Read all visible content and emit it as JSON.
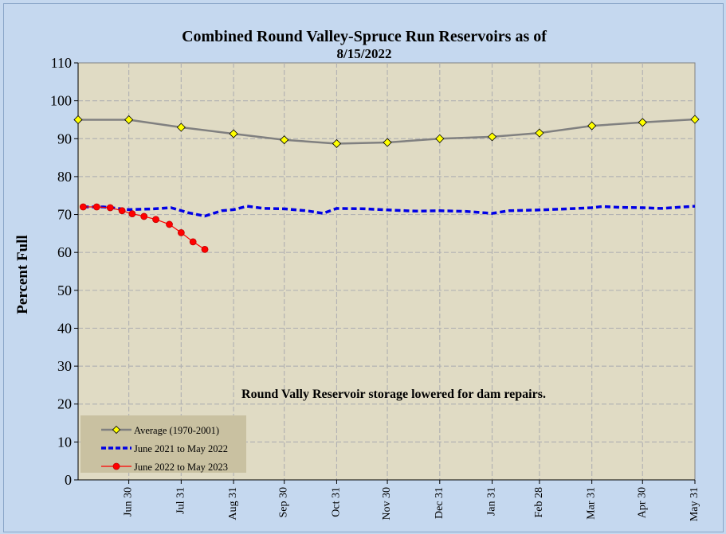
{
  "chart_data": {
    "type": "line",
    "title": "Combined Round Valley-Spruce Run Reservoirs as of",
    "subtitle": "8/15/2022",
    "ylabel": "Percent Full",
    "xlabel": "",
    "ylim": [
      0,
      110
    ],
    "yticks": [
      0,
      10,
      20,
      30,
      40,
      50,
      60,
      70,
      80,
      90,
      100,
      110
    ],
    "xlim": [
      0,
      365
    ],
    "x_ticks": [
      {
        "label": "Jun 30",
        "day": 30
      },
      {
        "label": "Jul 31",
        "day": 61
      },
      {
        "label": "Aug 31",
        "day": 92
      },
      {
        "label": "Sep 30",
        "day": 122
      },
      {
        "label": "Oct 31",
        "day": 153
      },
      {
        "label": "Nov 30",
        "day": 183
      },
      {
        "label": "Dec 31",
        "day": 214
      },
      {
        "label": "Jan 31",
        "day": 245
      },
      {
        "label": "Feb 28",
        "day": 273
      },
      {
        "label": "Mar 31",
        "day": 304
      },
      {
        "label": "Apr 30",
        "day": 334
      },
      {
        "label": "May 31",
        "day": 365
      }
    ],
    "annotation": "Round Vally Reservoir storage lowered for dam repairs.",
    "grid": true,
    "legend_position": "bottom-left",
    "series": [
      {
        "name": "Average (1970-2001)",
        "color": "#808080",
        "marker_color": "#ffff00",
        "style": "solid",
        "points": [
          [
            0,
            95
          ],
          [
            30,
            95
          ],
          [
            61,
            93
          ],
          [
            92,
            91.3
          ],
          [
            122,
            89.7
          ],
          [
            153,
            88.7
          ],
          [
            183,
            89
          ],
          [
            214,
            90
          ],
          [
            245,
            90.5
          ],
          [
            273,
            91.5
          ],
          [
            304,
            93.4
          ],
          [
            334,
            94.3
          ],
          [
            365,
            95.1
          ]
        ]
      },
      {
        "name": "June 2021 to May 2022",
        "color": "#0000e6",
        "style": "dashed",
        "points": [
          [
            3,
            72
          ],
          [
            15,
            72
          ],
          [
            30,
            71.3
          ],
          [
            45,
            71.5
          ],
          [
            55,
            71.8
          ],
          [
            65,
            70.5
          ],
          [
            75,
            69.6
          ],
          [
            85,
            71
          ],
          [
            92,
            71.3
          ],
          [
            100,
            72.2
          ],
          [
            110,
            71.6
          ],
          [
            122,
            71.5
          ],
          [
            135,
            71
          ],
          [
            145,
            70.3
          ],
          [
            153,
            71.6
          ],
          [
            170,
            71.5
          ],
          [
            183,
            71.2
          ],
          [
            200,
            70.9
          ],
          [
            214,
            71
          ],
          [
            230,
            70.8
          ],
          [
            245,
            70.3
          ],
          [
            255,
            71
          ],
          [
            273,
            71.2
          ],
          [
            290,
            71.5
          ],
          [
            304,
            71.8
          ],
          [
            310,
            72.1
          ],
          [
            320,
            71.9
          ],
          [
            334,
            71.8
          ],
          [
            345,
            71.6
          ],
          [
            365,
            72.2
          ]
        ]
      },
      {
        "name": "June 2022 to May 2023",
        "color": "#ff0000",
        "marker_color": "#ff0000",
        "style": "solid",
        "points": [
          [
            3,
            72
          ],
          [
            11,
            72
          ],
          [
            19,
            71.8
          ],
          [
            26,
            71
          ],
          [
            32,
            70.2
          ],
          [
            39,
            69.5
          ],
          [
            46,
            68.7
          ],
          [
            54,
            67.4
          ],
          [
            61,
            65.2
          ],
          [
            68,
            62.8
          ],
          [
            75,
            60.8
          ]
        ]
      }
    ]
  }
}
